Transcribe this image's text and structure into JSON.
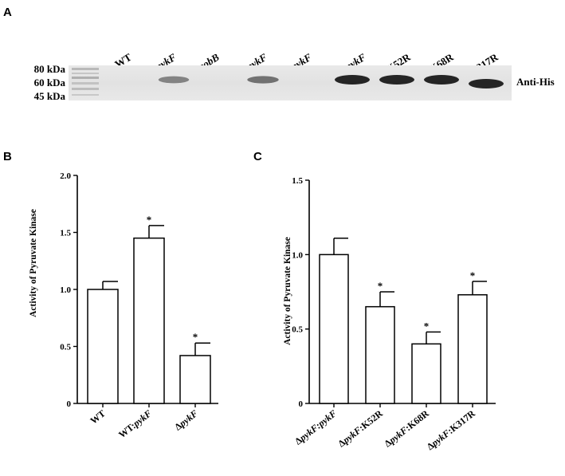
{
  "panels": {
    "a": "A",
    "b": "B",
    "c": "C"
  },
  "blot": {
    "lanes": [
      {
        "prefix": "",
        "italic": "",
        "suffix": "WT"
      },
      {
        "prefix": "WT:",
        "italic": "pykF",
        "suffix": ""
      },
      {
        "prefix": "Δ",
        "italic": "cobB",
        "suffix": ""
      },
      {
        "prefix": "Δ",
        "italic": "cobB:pykF",
        "suffix": ""
      },
      {
        "prefix": "Δ",
        "italic": "pykF",
        "suffix": ""
      },
      {
        "prefix": "Δ",
        "italic": "pykF:pykF",
        "suffix": ""
      },
      {
        "prefix": "Δ",
        "italic": "pykF",
        "suffix": ":K52R"
      },
      {
        "prefix": "Δ",
        "italic": "pykF",
        "suffix": ":K68R"
      },
      {
        "prefix": "Δ",
        "italic": "pykF",
        "suffix": ":K317R"
      }
    ],
    "band_intensity": [
      0,
      0.45,
      0,
      0.55,
      0,
      1.0,
      1.0,
      1.0,
      1.0
    ],
    "markers": [
      "80 kDa",
      "60 kDa",
      "45 kDa"
    ],
    "antibody_label": "Anti-His"
  },
  "chart_data": [
    {
      "type": "bar",
      "panel": "B",
      "categories": [
        {
          "prefix": "",
          "italic": "",
          "suffix": "WT"
        },
        {
          "prefix": "WT:",
          "italic": "pykF",
          "suffix": ""
        },
        {
          "prefix": "Δ",
          "italic": "pykF",
          "suffix": ""
        }
      ],
      "values": [
        1.0,
        1.45,
        0.42
      ],
      "errors": [
        0.07,
        0.11,
        0.11
      ],
      "significance": [
        "",
        "*",
        "*"
      ],
      "ylabel": "Activity of Pyruvate Kinase",
      "ylim": [
        0,
        2.0
      ],
      "yticks": [
        0,
        0.5,
        1.0,
        1.5,
        2.0
      ],
      "ytick_labels": [
        "0",
        "0.5",
        "1.0",
        "1.5",
        "2.0"
      ]
    },
    {
      "type": "bar",
      "panel": "C",
      "categories": [
        {
          "prefix": "Δ",
          "italic": "pykF:pykF",
          "suffix": ""
        },
        {
          "prefix": "Δ",
          "italic": "pykF",
          "suffix": ":K52R"
        },
        {
          "prefix": "Δ",
          "italic": "pykF",
          "suffix": ":K68R"
        },
        {
          "prefix": "Δ",
          "italic": "pykF",
          "suffix": ":K317R"
        }
      ],
      "values": [
        1.0,
        0.65,
        0.4,
        0.73
      ],
      "errors": [
        0.11,
        0.1,
        0.08,
        0.09
      ],
      "significance": [
        "",
        "*",
        "*",
        "*"
      ],
      "ylabel": "Activity of Pyruvate Kinase",
      "ylim": [
        0,
        1.5
      ],
      "yticks": [
        0,
        0.5,
        1.0,
        1.5
      ],
      "ytick_labels": [
        "0",
        "0.5",
        "1.0",
        "1.5"
      ]
    }
  ]
}
